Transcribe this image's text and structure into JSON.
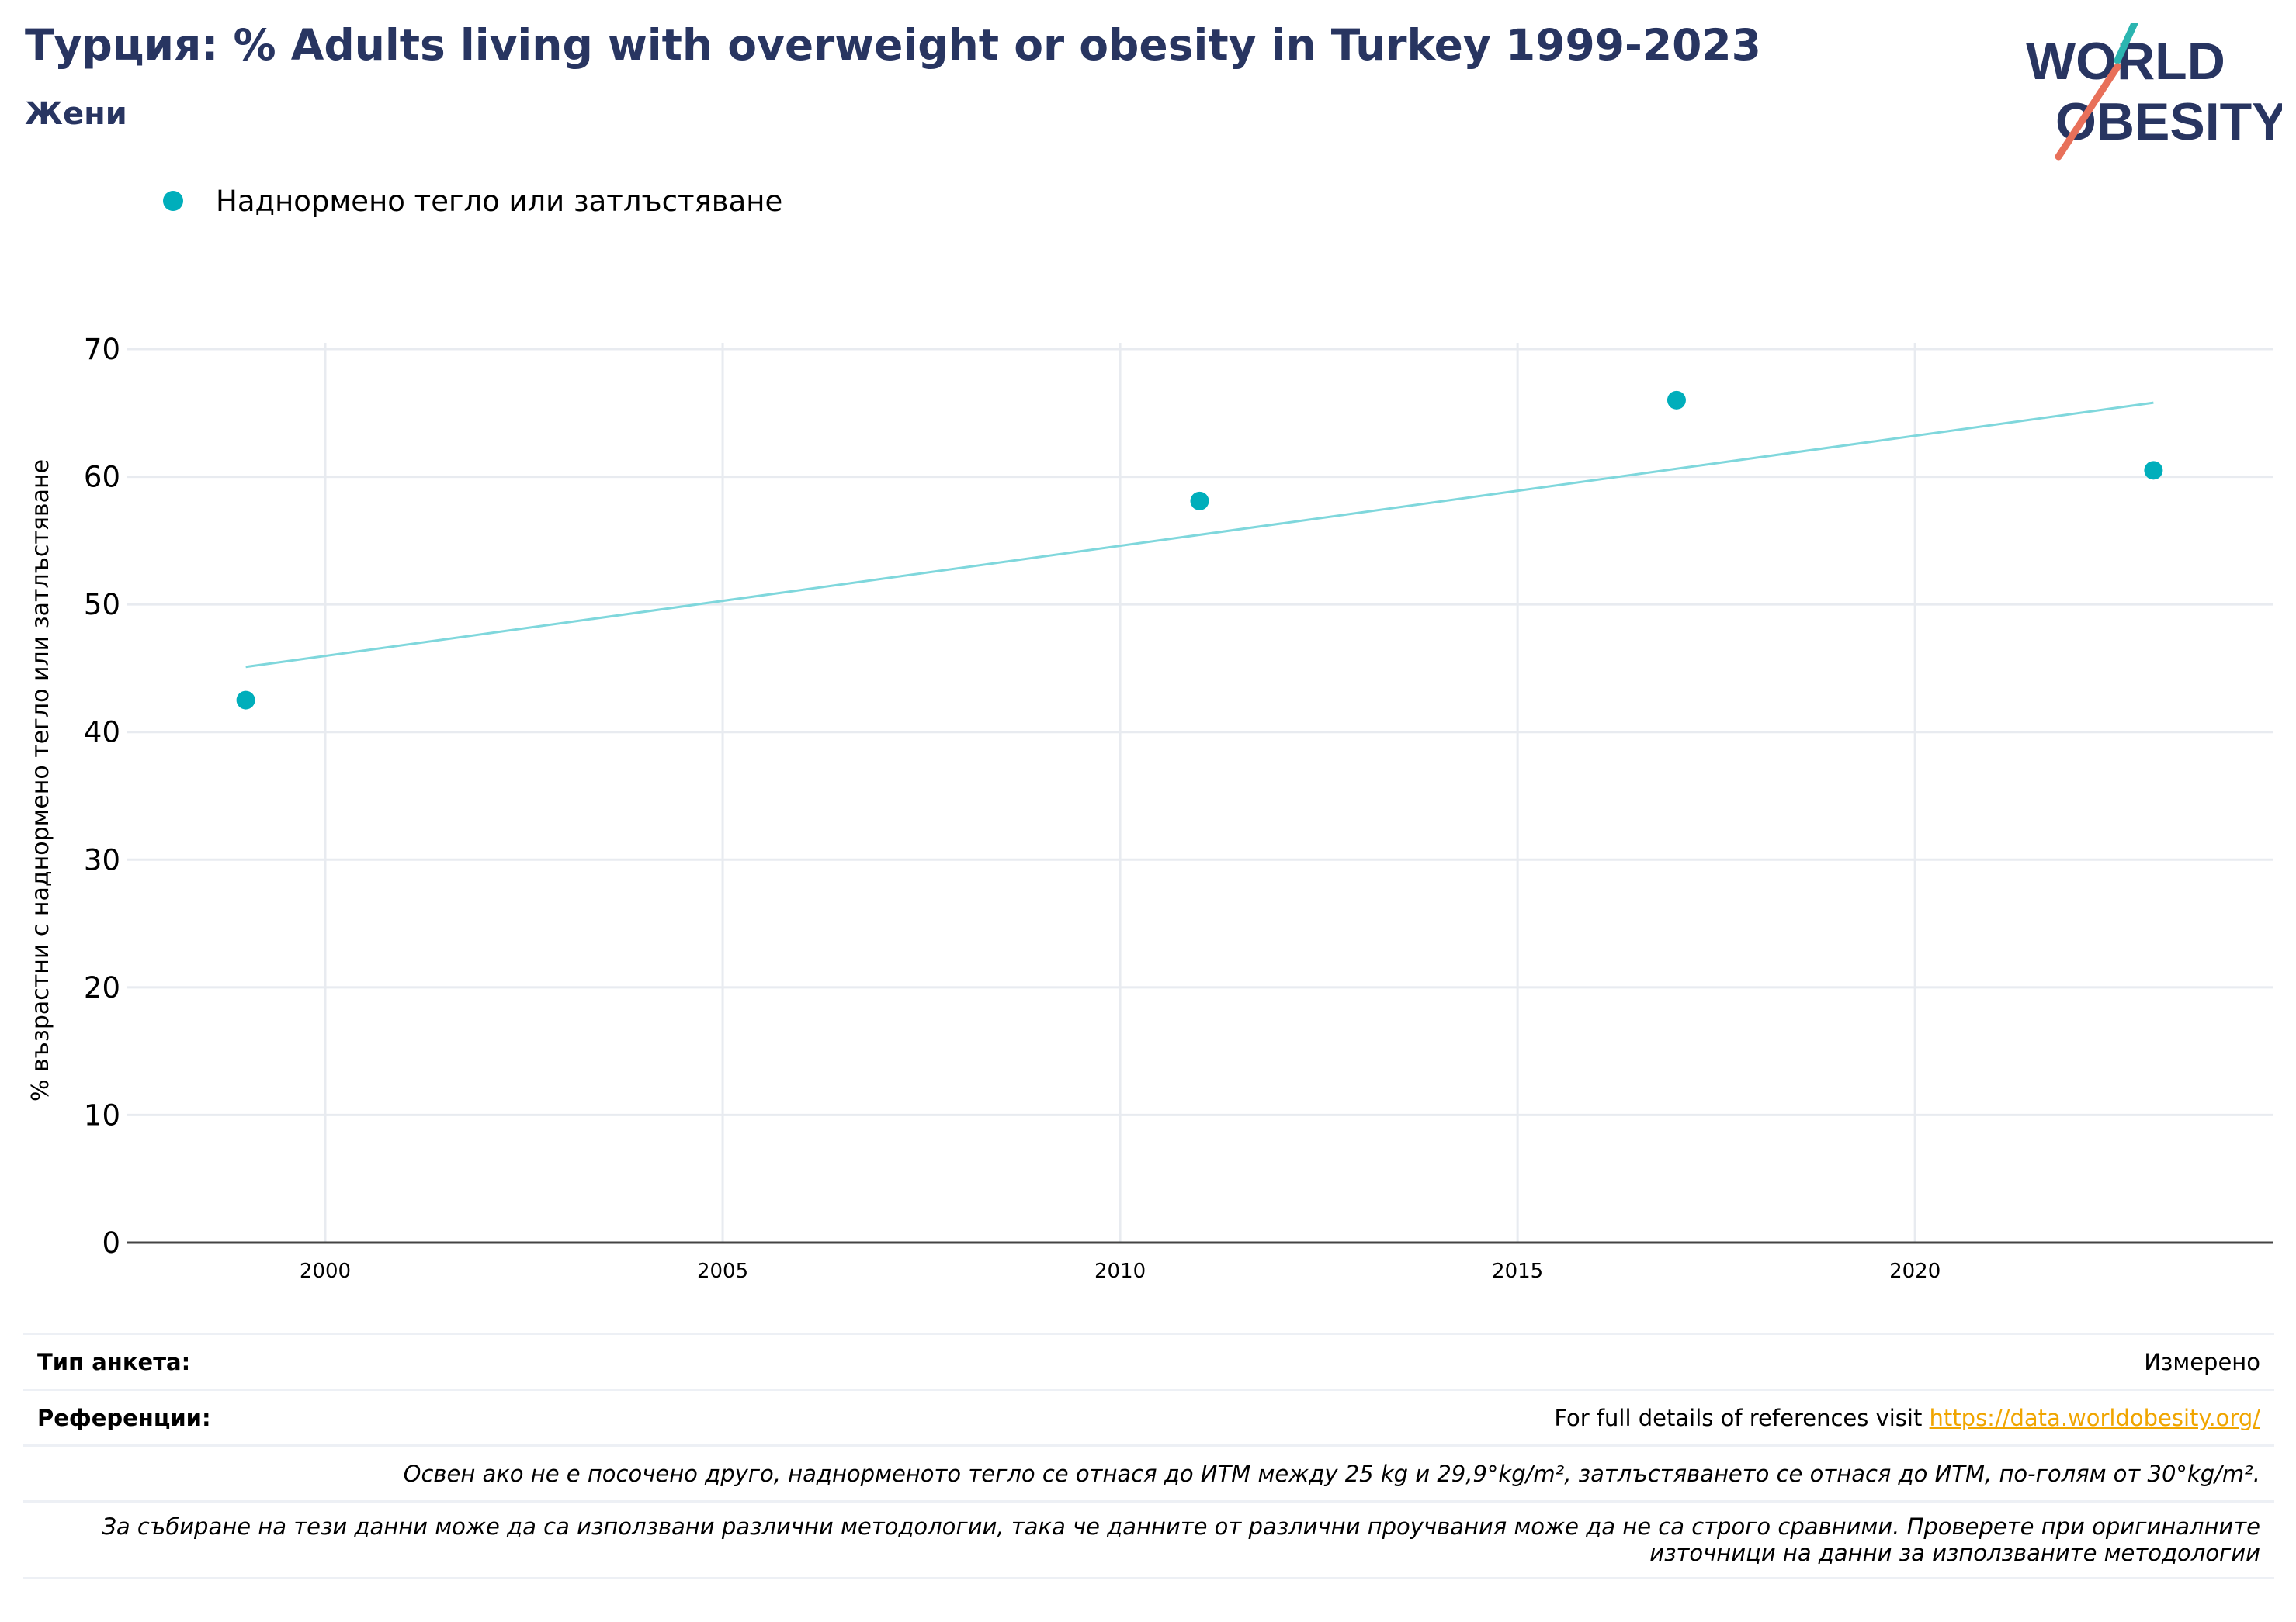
{
  "header": {
    "title": "Турция: % Adults living with overweight or obesity in Turkey 1999-2023",
    "subtitle": "Жени"
  },
  "logo": {
    "line1": "WORLD",
    "line2": "OBESITY"
  },
  "colors": {
    "title": "#283561",
    "marker": "#00aebb",
    "trend": "#7fd7dc",
    "grid": "#e8ebf0",
    "axis": "#444444",
    "link": "#f0a500",
    "logo_text": "#283561",
    "logo_slash_top": "#2bb5b0",
    "logo_slash_bottom": "#e8705a"
  },
  "legend": {
    "label": "Наднормено тегло или затлъстяване"
  },
  "chart_data": {
    "type": "scatter",
    "ylabel": "% възрастни с наднормено тегло или затлъстяване",
    "xlabel": "",
    "xlim": [
      1997.5,
      2024.5
    ],
    "ylim": [
      0,
      70
    ],
    "x_ticks": [
      2000,
      2005,
      2010,
      2015,
      2020
    ],
    "y_ticks": [
      0,
      10,
      20,
      30,
      40,
      50,
      60,
      70
    ],
    "grid": true,
    "legend_position": "top-left",
    "series": [
      {
        "name": "Наднормено тегло или затлъстяване",
        "points": [
          {
            "x": 1999,
            "y": 42.5
          },
          {
            "x": 2011,
            "y": 58.1
          },
          {
            "x": 2017,
            "y": 66.0
          },
          {
            "x": 2023,
            "y": 60.5
          }
        ]
      }
    ],
    "trendline": {
      "x": [
        1999,
        2023
      ],
      "y": [
        45.1,
        65.8
      ]
    }
  },
  "footer": {
    "survey_type_label": "Тип анкета:",
    "survey_type_value": "Измерено",
    "references_label": "Референции:",
    "references_text": "For full details of references visit ",
    "references_link": "https://data.worldobesity.org/",
    "note_bmi": "Освен ако не е посочено друго, наднорменото тегло се отнася до ИТМ между 25 kg и 29,9°kg/m², затлъстяването се отнася до ИТМ, по-голям от 30°kg/m².",
    "note_methods": "За събиране на тези данни може да са използвани различни методологии, така че данните от различни проучвания може да не са строго сравними. Проверете при оригиналните източници на данни за използваните методологии"
  }
}
